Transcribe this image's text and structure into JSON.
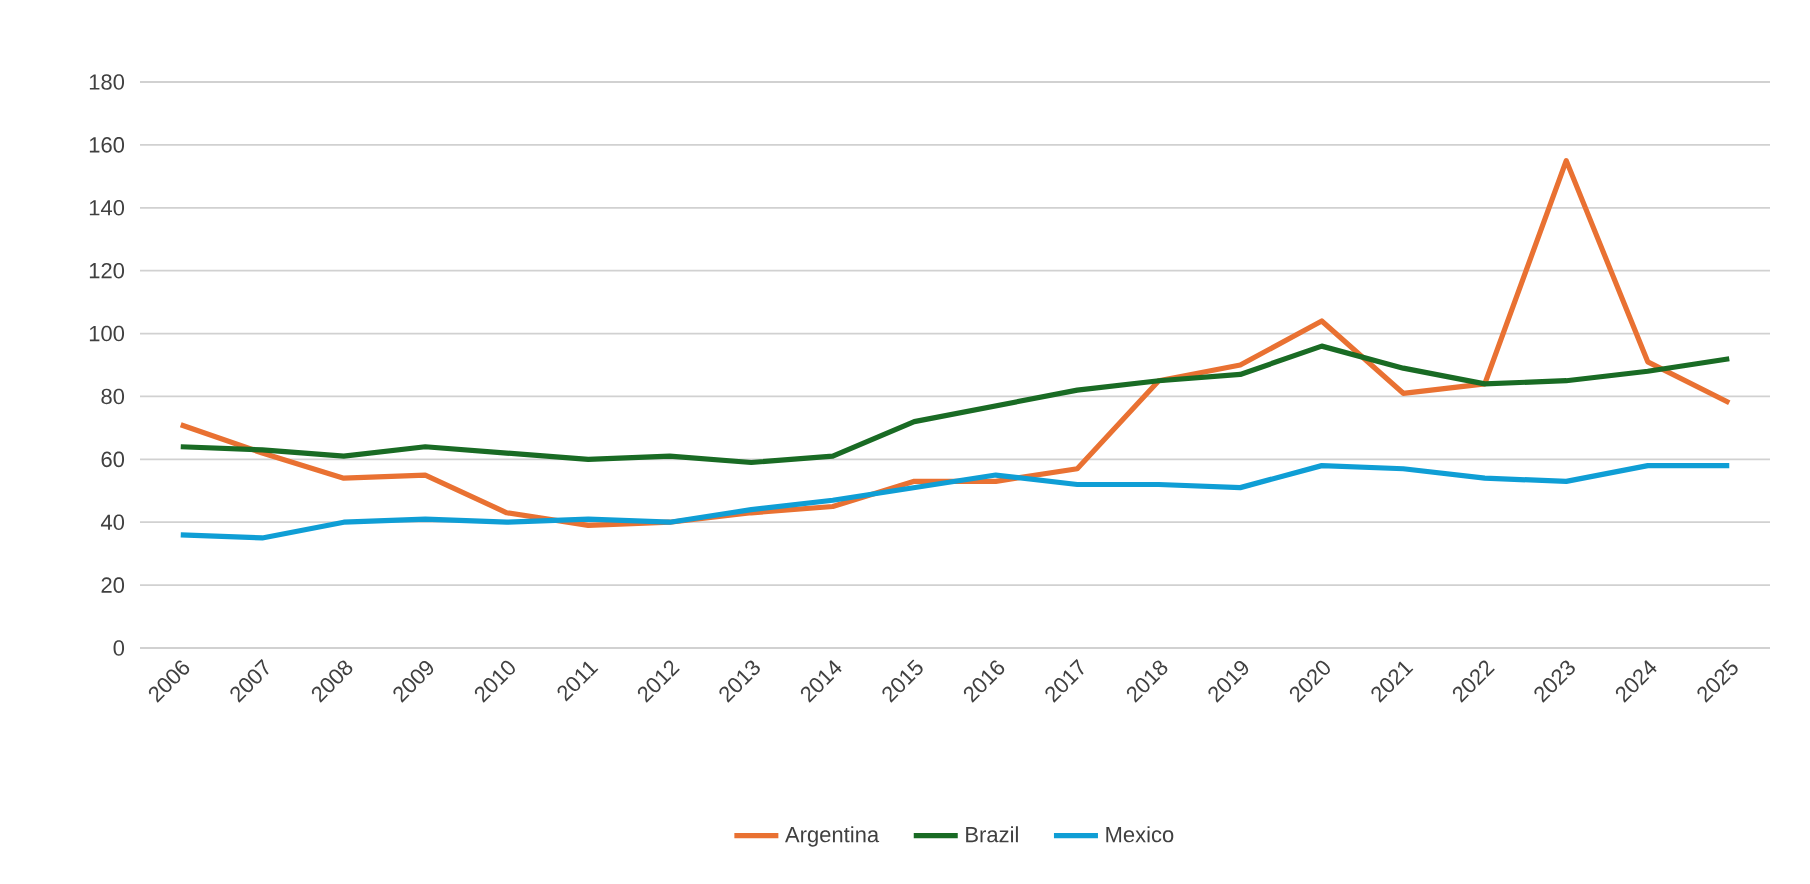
{
  "chart_data": {
    "type": "line",
    "categories": [
      "2006",
      "2007",
      "2008",
      "2009",
      "2010",
      "2011",
      "2012",
      "2013",
      "2014",
      "2015",
      "2016",
      "2017",
      "2018",
      "2019",
      "2020",
      "2021",
      "2022",
      "2023",
      "2024",
      "2025"
    ],
    "series": [
      {
        "name": "Argentina",
        "color": "#e97132",
        "values": [
          71,
          62,
          54,
          55,
          43,
          39,
          40,
          43,
          45,
          53,
          53,
          57,
          85,
          90,
          104,
          81,
          84,
          155,
          91,
          78
        ]
      },
      {
        "name": "Brazil",
        "color": "#196b24",
        "values": [
          64,
          63,
          61,
          64,
          62,
          60,
          61,
          59,
          61,
          72,
          77,
          82,
          85,
          87,
          96,
          89,
          84,
          85,
          88,
          92
        ]
      },
      {
        "name": "Mexico",
        "color": "#0f9ed5",
        "values": [
          36,
          35,
          40,
          41,
          40,
          41,
          40,
          44,
          47,
          51,
          55,
          52,
          52,
          51,
          58,
          57,
          54,
          53,
          58,
          58
        ]
      }
    ],
    "ylim": [
      0,
      180
    ],
    "yticks": [
      0,
      20,
      40,
      60,
      80,
      100,
      120,
      140,
      160,
      180
    ],
    "grid": "y",
    "legend": "bottom",
    "marker": "none",
    "line_style": "solid"
  }
}
